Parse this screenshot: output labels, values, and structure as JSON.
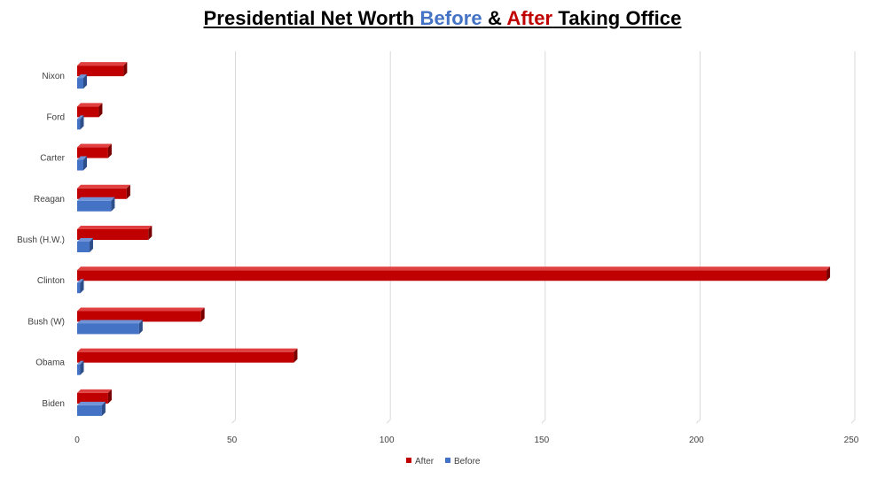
{
  "title": {
    "part1": "Presidential Net Worth ",
    "before_word": "Before",
    "part2": " & ",
    "after_word": "After",
    "part3": " Taking Office"
  },
  "colors": {
    "after": "#C00000",
    "after_dark": "#7A0000",
    "before": "#4472C4",
    "before_dark": "#2E4E8A",
    "grid": "#D9D9D9",
    "axis_text": "#404040"
  },
  "chart_data": {
    "type": "bar",
    "orientation": "horizontal",
    "style": "3d-clustered-bar",
    "title": "Presidential Net Worth Before & After Taking Office",
    "categories": [
      "Nixon",
      "Ford",
      "Carter",
      "Reagan",
      "Bush (H.W.)",
      "Clinton",
      "Bush (W)",
      "Obama",
      "Biden"
    ],
    "series": [
      {
        "name": "After",
        "values": [
          15,
          7,
          10,
          16,
          23,
          242,
          40,
          70,
          10
        ]
      },
      {
        "name": "Before",
        "values": [
          2,
          1,
          2,
          11,
          4,
          1,
          20,
          1,
          8
        ]
      }
    ],
    "xlim": [
      0,
      250
    ],
    "xticks": [
      0,
      50,
      100,
      150,
      200,
      250
    ],
    "grid": true,
    "legend_position": "bottom"
  }
}
